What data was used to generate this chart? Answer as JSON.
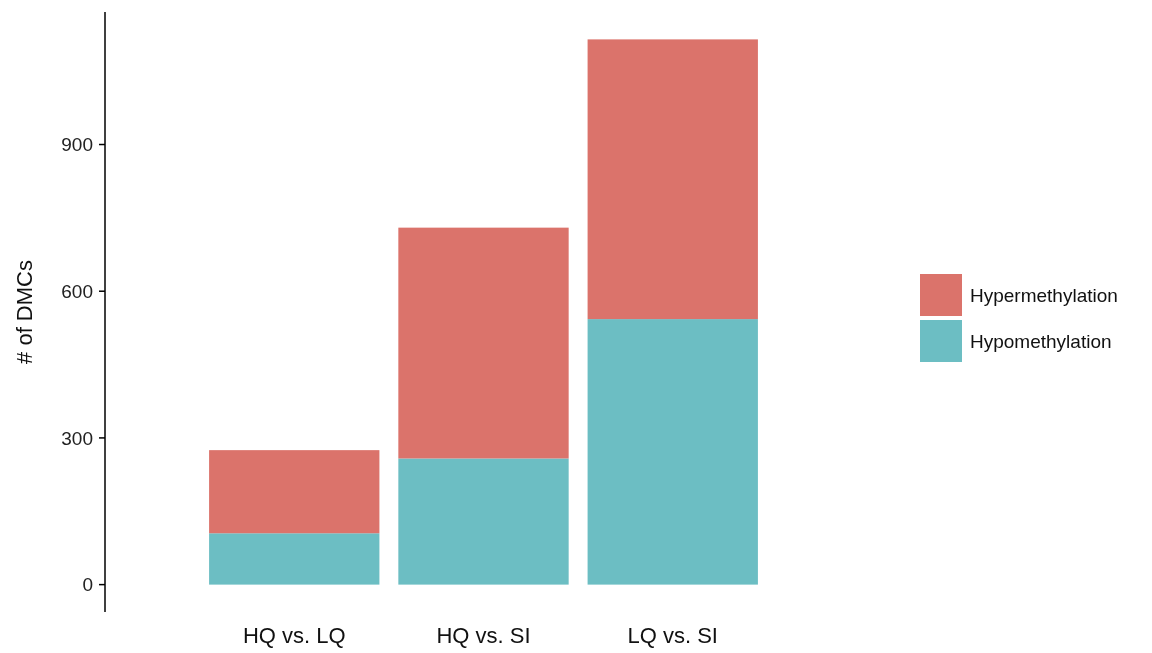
{
  "chart_data": {
    "type": "bar",
    "ylabel": "# of DMCs",
    "categories": [
      "HQ vs. LQ",
      "HQ vs. SI",
      "LQ vs. SI"
    ],
    "stacked": true,
    "series": [
      {
        "name": "Hypomethylation",
        "color": "#6cbec3",
        "values": [
          105,
          258,
          543
        ]
      },
      {
        "name": "Hypermethylation",
        "color": "#db736b",
        "values": [
          170,
          472,
          572
        ]
      }
    ],
    "ylim": [
      -56,
      1171
    ],
    "yticks": [
      0,
      300,
      600,
      900
    ],
    "grid": false,
    "legend": "right"
  }
}
